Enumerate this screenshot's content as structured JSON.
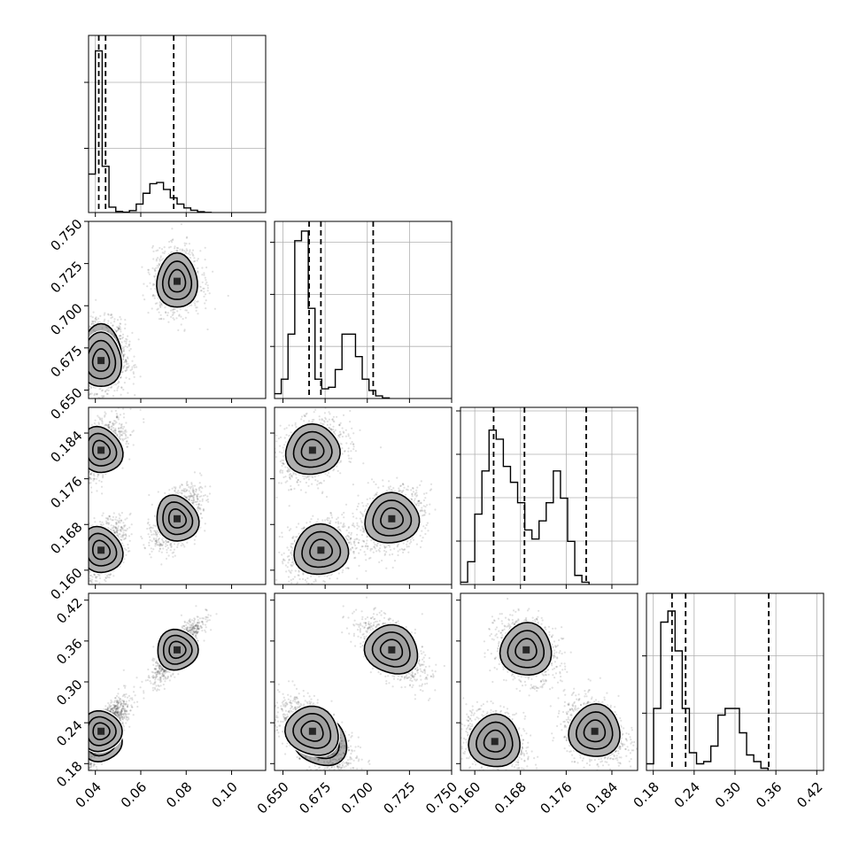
{
  "chart_data": {
    "type": "corner",
    "description_free": true,
    "grid": true,
    "variables": [
      {
        "range": [
          0.037,
          0.115
        ],
        "ticks": [
          0.04,
          0.06,
          0.08,
          0.1
        ],
        "tick_labels": [
          "0.04",
          "0.06",
          "0.08",
          "0.10"
        ],
        "quantiles": [
          0.0415,
          0.0445,
          0.0745
        ],
        "histogram": {
          "bin_width": 0.003,
          "counts": [
            1.0,
            4.2,
            1.2,
            0.14,
            0.03,
            0.01,
            0.05,
            0.22,
            0.5,
            0.75,
            0.78,
            0.6,
            0.38,
            0.22,
            0.12,
            0.06,
            0.02,
            0.005
          ],
          "max": 4.6
        },
        "y_grid_fraction": [
          0.37,
          0.75
        ]
      },
      {
        "range": [
          0.645,
          0.75
        ],
        "ticks": [
          0.65,
          0.675,
          0.7,
          0.725,
          0.75
        ],
        "tick_labels": [
          "0.650",
          "0.675",
          "0.700",
          "0.725",
          "0.750"
        ],
        "quantiles": [
          0.6655,
          0.6725,
          0.7035
        ],
        "histogram": {
          "bin_width": 0.004,
          "counts": [
            0.15,
            0.6,
            2.0,
            4.9,
            5.2,
            2.8,
            0.6,
            0.3,
            0.35,
            0.9,
            2.0,
            2.0,
            1.3,
            0.6,
            0.25,
            0.08,
            0.02
          ],
          "max": 5.5
        },
        "y_grid_fraction": [
          0.3,
          0.6,
          0.9
        ]
      },
      {
        "range": [
          0.1575,
          0.1885
        ],
        "ticks": [
          0.16,
          0.168,
          0.176,
          0.184
        ],
        "tick_labels": [
          "0.160",
          "0.168",
          "0.176",
          "0.184"
        ],
        "quantiles": [
          0.1633,
          0.1687,
          0.1795
        ],
        "histogram": {
          "bin_width": 0.00125,
          "counts": [
            0.05,
            0.5,
            1.55,
            2.5,
            3.4,
            3.2,
            2.6,
            2.25,
            1.8,
            1.2,
            1.0,
            1.4,
            1.8,
            2.5,
            1.9,
            0.95,
            0.2,
            0.05
          ],
          "max": 3.9
        },
        "y_grid_fraction": [
          0.25,
          0.5,
          0.75,
          1.0
        ]
      },
      {
        "range": [
          0.17,
          0.43
        ],
        "ticks": [
          0.18,
          0.24,
          0.3,
          0.36,
          0.42
        ],
        "tick_labels": [
          "0.18",
          "0.24",
          "0.30",
          "0.36",
          "0.42"
        ],
        "quantiles": [
          0.2075,
          0.2275,
          0.3495
        ],
        "histogram": {
          "bin_width": 0.0105,
          "counts": [
            0.15,
            1.4,
            3.35,
            3.6,
            2.7,
            1.4,
            0.4,
            0.15,
            0.2,
            0.55,
            1.25,
            1.4,
            1.4,
            0.85,
            0.35,
            0.2,
            0.05
          ],
          "max": 4.0
        },
        "y_grid_fraction": [
          0.33,
          0.66
        ]
      }
    ],
    "clusters": [
      [
        0.0425,
        0.6725,
        0.1635,
        0.2125
      ],
      [
        0.0425,
        0.6675,
        0.181,
        0.2275
      ],
      [
        0.076,
        0.7145,
        0.169,
        0.347
      ]
    ],
    "cluster_spread": [
      0.005,
      0.009,
      0.0025,
      0.022
    ],
    "contour_levels": [
      0.45,
      0.85,
      1.25
    ]
  }
}
